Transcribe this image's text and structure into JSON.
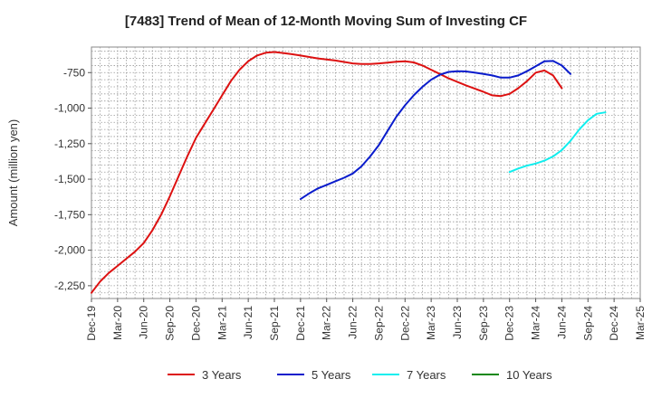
{
  "chart_data": {
    "type": "line",
    "title": "[7483]  Trend of Mean of 12-Month Moving Sum of Investing CF",
    "xlabel": "",
    "ylabel": "Amount (million yen)",
    "ylim": [
      -2340,
      -570
    ],
    "y_ticks": [
      -750,
      -1000,
      -1250,
      -1500,
      -1750,
      -2000,
      -2250
    ],
    "y_tick_labels": [
      "-750",
      "-1,000",
      "-1,250",
      "-1,500",
      "-1,750",
      "-2,000",
      "-2,250"
    ],
    "x_tick_labels": [
      "Dec-19",
      "Mar-20",
      "Jun-20",
      "Sep-20",
      "Dec-20",
      "Mar-21",
      "Jun-21",
      "Sep-21",
      "Dec-21",
      "Mar-22",
      "Jun-22",
      "Sep-22",
      "Dec-22",
      "Mar-23",
      "Jun-23",
      "Sep-23",
      "Dec-23",
      "Mar-24",
      "Jun-24",
      "Sep-24",
      "Dec-24",
      "Mar-25"
    ],
    "grid": true,
    "legend_position": "bottom",
    "series": [
      {
        "name": "3 Years",
        "color": "#dd1111",
        "start_index": 0,
        "values": [
          -2300,
          -2220,
          -2160,
          -2110,
          -2060,
          -2010,
          -1950,
          -1860,
          -1750,
          -1620,
          -1480,
          -1340,
          -1210,
          -1110,
          -1010,
          -910,
          -810,
          -730,
          -670,
          -630,
          -610,
          -605,
          -612,
          -620,
          -630,
          -640,
          -650,
          -658,
          -665,
          -675,
          -685,
          -690,
          -690,
          -685,
          -680,
          -674,
          -670,
          -678,
          -700,
          -730,
          -760,
          -790,
          -815,
          -840,
          -862,
          -885,
          -910,
          -915,
          -900,
          -860,
          -810,
          -750,
          -735,
          -770,
          -860
        ]
      },
      {
        "name": "5 Years",
        "color": "#0a1ccc",
        "start_index": 24,
        "values": [
          -1640,
          -1600,
          -1565,
          -1540,
          -1515,
          -1490,
          -1460,
          -1410,
          -1340,
          -1260,
          -1160,
          -1060,
          -980,
          -910,
          -850,
          -800,
          -765,
          -745,
          -740,
          -742,
          -750,
          -760,
          -770,
          -785,
          -785,
          -770,
          -740,
          -705,
          -670,
          -668,
          -700,
          -760
        ]
      },
      {
        "name": "7 Years",
        "color": "#11eeee",
        "start_index": 48,
        "values": [
          -1450,
          -1425,
          -1405,
          -1390,
          -1370,
          -1340,
          -1295,
          -1230,
          -1150,
          -1085,
          -1040,
          -1030
        ]
      },
      {
        "name": "10 Years",
        "color": "#118811",
        "start_index": 0,
        "values": []
      }
    ]
  }
}
